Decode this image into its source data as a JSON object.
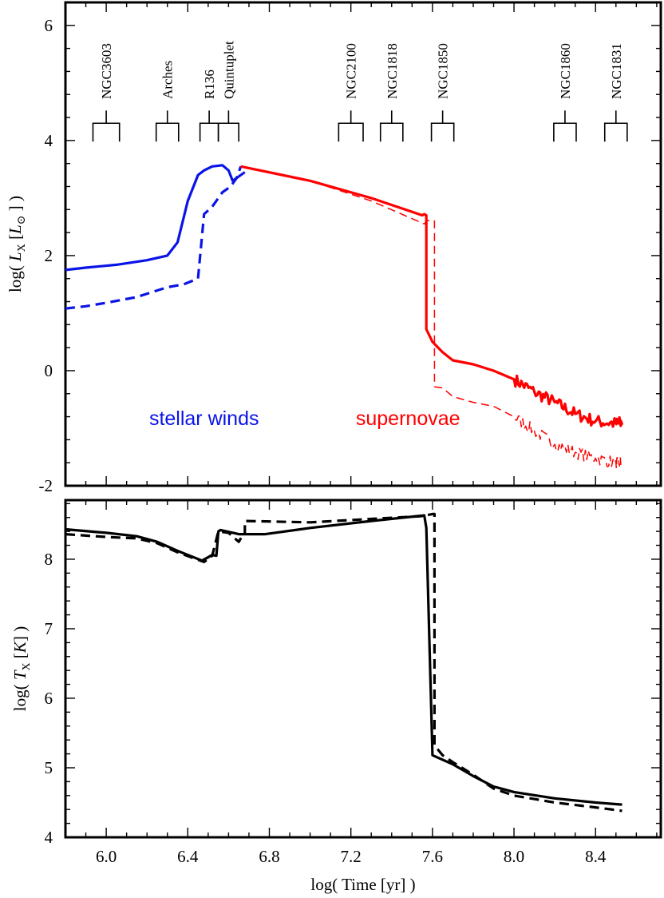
{
  "chart_data": [
    {
      "type": "line",
      "panel": "top",
      "xlim": [
        5.8,
        8.72
      ],
      "ylim": [
        -2,
        6.4
      ],
      "ylabel_parts": {
        "pre": "log( ",
        "sym": "L",
        "sub": "X",
        "mid": " [",
        "unit": "L",
        "unit_sub": "⊙",
        "post": " ] )"
      },
      "x_ticks": [
        6.0,
        6.4,
        6.8,
        7.2,
        7.6,
        8.0,
        8.4
      ],
      "y_ticks": [
        {
          "value": -2,
          "label": "-2"
        },
        {
          "value": 0,
          "label": "0"
        },
        {
          "value": 2,
          "label": "2"
        },
        {
          "value": 4,
          "label": "4"
        },
        {
          "value": 6,
          "label": "6"
        }
      ],
      "grid": false,
      "clusters": [
        {
          "name": "NGC3603",
          "center": 6.0,
          "half_width": 0.065
        },
        {
          "name": "Arches",
          "center": 6.3,
          "half_width": 0.055
        },
        {
          "name": "R136",
          "center": 6.505,
          "half_width": 0.045
        },
        {
          "name": "Quintuplet",
          "center": 6.6,
          "half_width": 0.05
        },
        {
          "name": "NGC2100",
          "center": 7.2,
          "half_width": 0.06
        },
        {
          "name": "NGC1818",
          "center": 7.4,
          "half_width": 0.055
        },
        {
          "name": "NGC1850",
          "center": 7.65,
          "half_width": 0.055
        },
        {
          "name": "NGC1860",
          "center": 8.25,
          "half_width": 0.055
        },
        {
          "name": "NGC1831",
          "center": 8.5,
          "half_width": 0.055
        }
      ],
      "annotations": [
        {
          "text": "stellar winds",
          "x": 6.48,
          "y": -0.82,
          "color": "#0a14e6"
        },
        {
          "text": "supernovae",
          "x": 7.48,
          "y": -0.82,
          "color": "#ff0000"
        }
      ],
      "series": [
        {
          "role": "stellar-winds-solid",
          "color": "#0a14e6",
          "style": "solid",
          "x": [
            5.8,
            5.9,
            6.05,
            6.2,
            6.3,
            6.35,
            6.4,
            6.45,
            6.48,
            6.52,
            6.57,
            6.6,
            6.62,
            6.68
          ],
          "y": [
            1.75,
            1.79,
            1.84,
            1.92,
            2.0,
            2.23,
            2.95,
            3.4,
            3.48,
            3.55,
            3.57,
            3.48,
            3.3,
            3.45
          ]
        },
        {
          "role": "stellar-winds-dashed",
          "color": "#0a14e6",
          "style": "dashed",
          "x": [
            5.8,
            5.9,
            6.0,
            6.15,
            6.3,
            6.38,
            6.45,
            6.48,
            6.52,
            6.57,
            6.61,
            6.64,
            6.66
          ],
          "y": [
            1.08,
            1.12,
            1.18,
            1.28,
            1.45,
            1.5,
            1.6,
            2.72,
            2.85,
            3.1,
            3.2,
            3.35,
            3.55
          ]
        },
        {
          "role": "supernovae-solid",
          "color": "#ff0000",
          "style": "solid",
          "noise_from_x": 7.95,
          "x": [
            6.66,
            7.0,
            7.3,
            7.55,
            7.56,
            7.57,
            7.57,
            7.6,
            7.65,
            7.7,
            7.8,
            7.9,
            8.0,
            8.1,
            8.2,
            8.3,
            8.4,
            8.5,
            8.53
          ],
          "y": [
            3.55,
            3.3,
            3.0,
            2.7,
            2.72,
            2.7,
            0.72,
            0.5,
            0.32,
            0.18,
            0.11,
            0.0,
            -0.15,
            -0.37,
            -0.55,
            -0.75,
            -0.88,
            -0.92,
            -0.9
          ]
        },
        {
          "role": "supernovae-dashed",
          "color": "#ff0000",
          "style": "dashed-thin",
          "noise_from_x": 7.95,
          "x": [
            6.66,
            7.0,
            7.3,
            7.56,
            7.57,
            7.6,
            7.61,
            7.61,
            7.65,
            7.7,
            7.8,
            7.9,
            8.0,
            8.1,
            8.2,
            8.3,
            8.4,
            8.5,
            8.53
          ],
          "y": [
            3.55,
            3.3,
            2.95,
            2.55,
            2.6,
            2.62,
            2.6,
            -0.28,
            -0.3,
            -0.45,
            -0.55,
            -0.62,
            -0.8,
            -1.05,
            -1.28,
            -1.42,
            -1.52,
            -1.6,
            -1.6
          ]
        }
      ]
    },
    {
      "type": "line",
      "panel": "bottom",
      "xlim": [
        5.8,
        8.72
      ],
      "ylim": [
        4.0,
        8.85
      ],
      "ylabel_parts": {
        "pre": "log( ",
        "sym": "T",
        "sub": "X",
        "mid": " [",
        "unit": "K",
        "unit_sub": "",
        "post": "] )"
      },
      "xlabel": "log( Time [yr] )",
      "x_ticks": [
        {
          "value": 6.0,
          "label": "6.0"
        },
        {
          "value": 6.4,
          "label": "6.4"
        },
        {
          "value": 6.8,
          "label": "6.8"
        },
        {
          "value": 7.2,
          "label": "7.2"
        },
        {
          "value": 7.6,
          "label": "7.6"
        },
        {
          "value": 8.0,
          "label": "8.0"
        },
        {
          "value": 8.4,
          "label": "8.4"
        }
      ],
      "y_ticks": [
        {
          "value": 4,
          "label": "4"
        },
        {
          "value": 5,
          "label": "5"
        },
        {
          "value": 6,
          "label": "6"
        },
        {
          "value": 7,
          "label": "7"
        },
        {
          "value": 8,
          "label": "8"
        }
      ],
      "grid": false,
      "series": [
        {
          "role": "solid",
          "color": "#000000",
          "style": "solid",
          "x": [
            5.8,
            6.0,
            6.15,
            6.25,
            6.35,
            6.47,
            6.52,
            6.54,
            6.55,
            6.56,
            6.65,
            6.78,
            7.0,
            7.3,
            7.56,
            7.57,
            7.6,
            7.7,
            7.8,
            7.9,
            8.0,
            8.2,
            8.4,
            8.53
          ],
          "y": [
            8.43,
            8.38,
            8.33,
            8.25,
            8.12,
            7.98,
            8.06,
            8.05,
            8.4,
            8.42,
            8.36,
            8.36,
            8.45,
            8.55,
            8.63,
            8.45,
            5.18,
            5.05,
            4.88,
            4.73,
            4.65,
            4.56,
            4.5,
            4.47
          ]
        },
        {
          "role": "dashed",
          "color": "#000000",
          "style": "dashed",
          "x": [
            5.8,
            6.0,
            6.15,
            6.25,
            6.35,
            6.48,
            6.52,
            6.55,
            6.6,
            6.65,
            6.67,
            6.68,
            6.68,
            7.0,
            7.3,
            7.55,
            7.6,
            7.61,
            7.61,
            7.65,
            7.7,
            7.8,
            7.9,
            8.0,
            8.2,
            8.4,
            8.53
          ],
          "y": [
            8.36,
            8.32,
            8.3,
            8.23,
            8.1,
            7.96,
            8.05,
            8.4,
            8.38,
            8.25,
            8.35,
            8.35,
            8.55,
            8.53,
            8.58,
            8.62,
            8.65,
            8.65,
            5.32,
            5.18,
            5.08,
            4.9,
            4.7,
            4.6,
            4.5,
            4.43,
            4.38
          ]
        }
      ]
    }
  ]
}
